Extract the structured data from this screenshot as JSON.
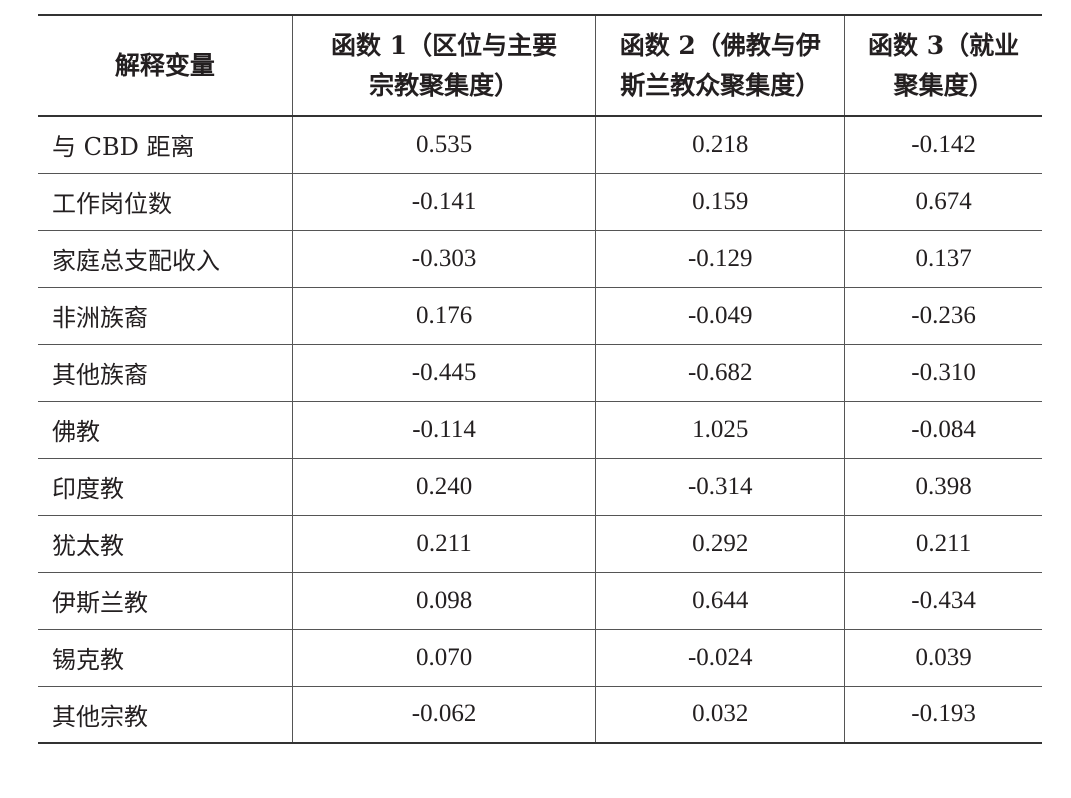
{
  "table": {
    "headers": [
      "解释变量",
      "函数 1（区位与主要宗教聚集度）",
      "函数 2（佛教与伊斯兰教众聚集度）",
      "函数 3（就业聚集度）"
    ],
    "header_lines": [
      [
        "解释变量"
      ],
      [
        "函数 1（区位与主要",
        "宗教聚集度）"
      ],
      [
        "函数 2（佛教与伊",
        "斯兰教众聚集度）"
      ],
      [
        "函数 3（就业",
        "聚集度）"
      ]
    ],
    "rows": [
      [
        "与 CBD 距离",
        "0.535",
        "0.218",
        "-0.142"
      ],
      [
        "工作岗位数",
        "-0.141",
        "0.159",
        "0.674"
      ],
      [
        "家庭总支配收入",
        "-0.303",
        "-0.129",
        "0.137"
      ],
      [
        "非洲族裔",
        "0.176",
        "-0.049",
        "-0.236"
      ],
      [
        "其他族裔",
        "-0.445",
        "-0.682",
        "-0.310"
      ],
      [
        "佛教",
        "-0.114",
        "1.025",
        "-0.084"
      ],
      [
        "印度教",
        "0.240",
        "-0.314",
        "0.398"
      ],
      [
        "犹太教",
        "0.211",
        "0.292",
        "0.211"
      ],
      [
        "伊斯兰教",
        "0.098",
        "0.644",
        "-0.434"
      ],
      [
        "锡克教",
        "0.070",
        "-0.024",
        "0.039"
      ],
      [
        "其他宗教",
        "-0.062",
        "0.032",
        "-0.193"
      ]
    ]
  }
}
